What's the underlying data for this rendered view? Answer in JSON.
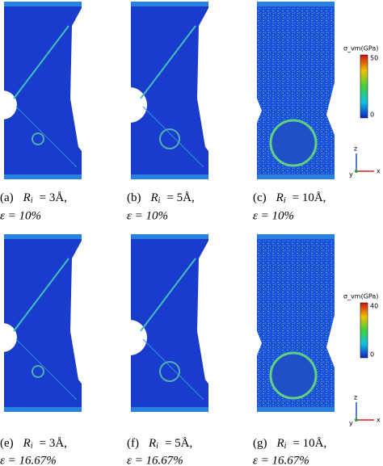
{
  "panels": [
    {
      "tag": "(a)",
      "symbol": "R",
      "subscript": "i",
      "radius": "= 3Å,",
      "strain": "ε = 10%"
    },
    {
      "tag": "(b)",
      "symbol": "R",
      "subscript": "i",
      "radius": "= 5Å,",
      "strain": "ε = 10%"
    },
    {
      "tag": "(c)",
      "symbol": "R",
      "subscript": "i",
      "radius": "= 10Å,",
      "strain": "ε = 10%"
    },
    {
      "tag": "(e)",
      "symbol": "R",
      "subscript": "i",
      "radius": "= 3Å,",
      "strain": "ε = 16.67%"
    },
    {
      "tag": "(f)",
      "symbol": "R",
      "subscript": "i",
      "radius": "= 5Å,",
      "strain": "ε = 16.67%"
    },
    {
      "tag": "(g)",
      "symbol": "R",
      "subscript": "i",
      "radius": "= 10Å,",
      "strain": "ε = 16.67%"
    }
  ],
  "colorbars": [
    {
      "label": "σ_vm(GPa)",
      "max": "50",
      "min": "0"
    },
    {
      "label": "σ_vm(GPa)",
      "max": "40",
      "min": "0"
    }
  ],
  "axes": [
    {
      "z": "z",
      "x": "x",
      "y": "y"
    },
    {
      "z": "z",
      "x": "x",
      "y": "y"
    }
  ]
}
